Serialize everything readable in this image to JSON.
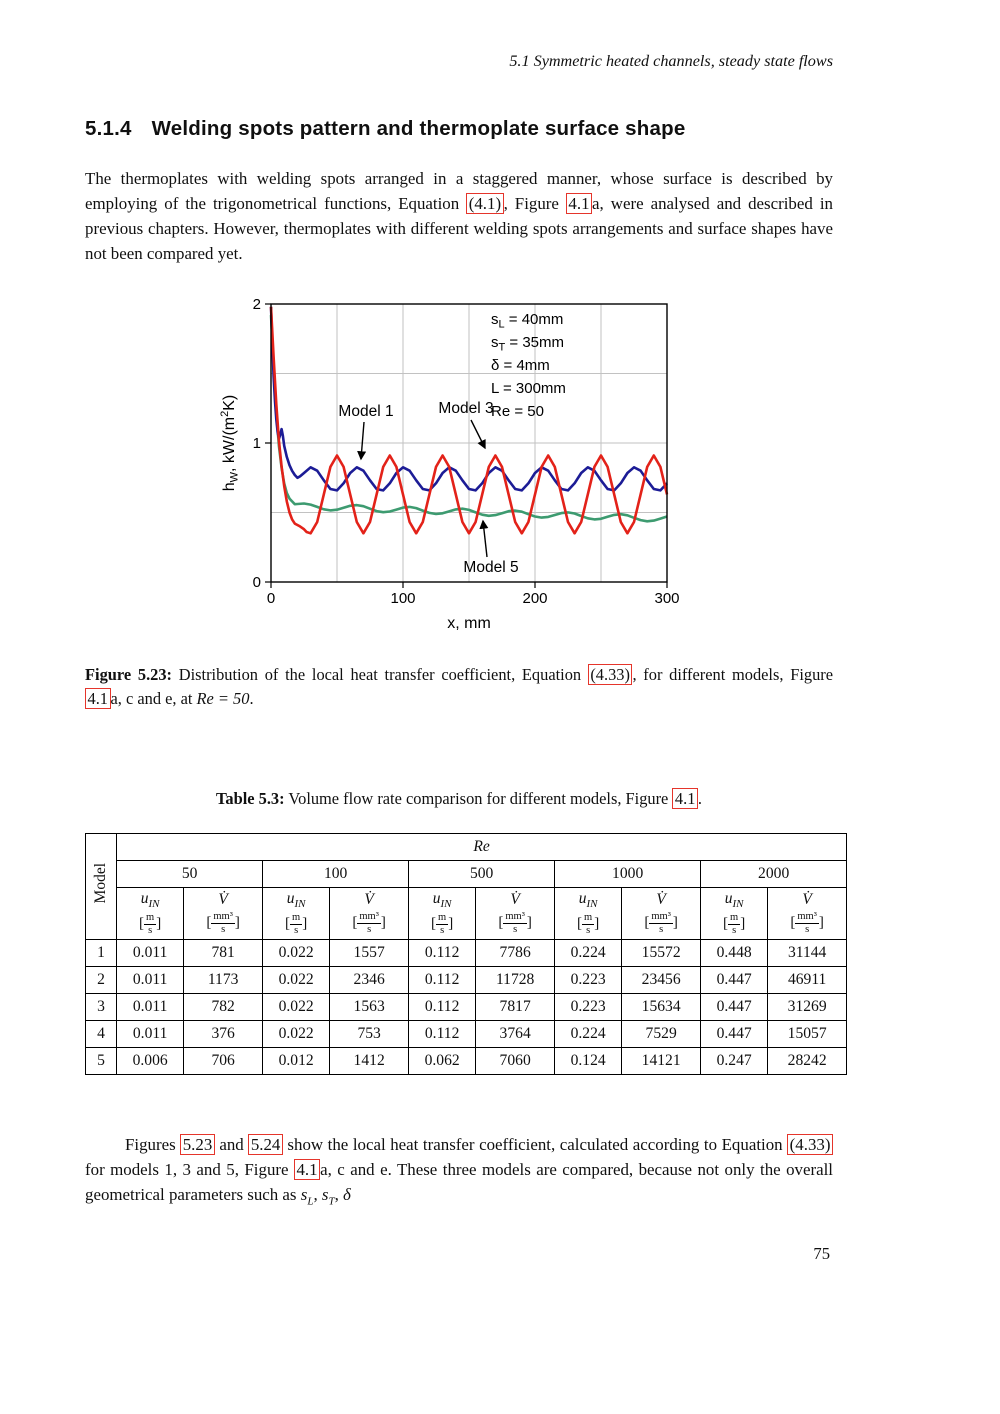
{
  "running_head": "5.1 Symmetric heated channels, steady state flows",
  "heading": {
    "number": "5.1.4",
    "title": "Welding spots pattern and thermoplate surface shape"
  },
  "para1": {
    "s0": "The thermoplates with welding spots arranged in a staggered manner, whose surface is described by employing of the trigonometrical functions, Equation ",
    "ref1": "(4.1)",
    "s1": ", Figure ",
    "ref2": "4.1",
    "s2": "a, were analysed and described in previous chapters. However, thermoplates with different welding spots arrangements and surface shapes have not been compared yet."
  },
  "figure": {
    "ylabel_parts": {
      "p0": "h",
      "sub": "W",
      "p1": ", kW/(m",
      "sup": "2",
      "p2": "K)"
    },
    "xlabel": "x, mm",
    "params": [
      {
        "text": "sL = 40mm",
        "pre": "s",
        "sub": "L",
        "post": " = 40mm"
      },
      {
        "text": "sT = 35mm",
        "pre": "s",
        "sub": "T",
        "post": " = 35mm"
      },
      {
        "text": "δ = 4mm"
      },
      {
        "text": "L = 300mm"
      },
      {
        "text": "Re = 50"
      }
    ],
    "annotations": [
      {
        "label": "Model 1"
      },
      {
        "label": "Model 3"
      },
      {
        "label": "Model 5"
      }
    ]
  },
  "chart_data": {
    "type": "line",
    "xlabel": "x, mm",
    "ylabel": "h_W, kW/(m²K)",
    "xlim": [
      0,
      300
    ],
    "ylim": [
      0,
      2
    ],
    "xticks": [
      0,
      100,
      200,
      300
    ],
    "yticks": [
      0,
      1,
      2
    ],
    "grid_x_step": 50,
    "grid_y_step": 0.5,
    "params_box": [
      "sL = 40mm",
      "sT = 35mm",
      "δ = 4mm",
      "L = 300mm",
      "Re = 50"
    ],
    "series": [
      {
        "name": "Model 1",
        "color": "#1c1c96",
        "z": 2,
        "points": [
          [
            0,
            1.98
          ],
          [
            1,
            1.72
          ],
          [
            2,
            1.48
          ],
          [
            3,
            1.3
          ],
          [
            4,
            1.17
          ],
          [
            5,
            1.08
          ],
          [
            6,
            1.03
          ],
          [
            7,
            1.06
          ],
          [
            8,
            1.1
          ],
          [
            9,
            1.05
          ],
          [
            10,
            0.98
          ],
          [
            12,
            0.9
          ],
          [
            14,
            0.84
          ],
          [
            16,
            0.8
          ],
          [
            18,
            0.77
          ],
          [
            20,
            0.75
          ],
          [
            22,
            0.76
          ],
          [
            25,
            0.784
          ],
          [
            30,
            0.825
          ],
          [
            35,
            0.801
          ],
          [
            40,
            0.732
          ],
          [
            45,
            0.669
          ],
          [
            50,
            0.659
          ],
          [
            55,
            0.71
          ],
          [
            60,
            0.784
          ],
          [
            65,
            0.825
          ],
          [
            70,
            0.801
          ],
          [
            75,
            0.732
          ],
          [
            80,
            0.669
          ],
          [
            85,
            0.659
          ],
          [
            90,
            0.71
          ],
          [
            95,
            0.784
          ],
          [
            100,
            0.825
          ],
          [
            105,
            0.801
          ],
          [
            110,
            0.732
          ],
          [
            115,
            0.669
          ],
          [
            120,
            0.659
          ],
          [
            125,
            0.71
          ],
          [
            130,
            0.784
          ],
          [
            135,
            0.825
          ],
          [
            140,
            0.801
          ],
          [
            145,
            0.732
          ],
          [
            150,
            0.669
          ],
          [
            155,
            0.659
          ],
          [
            160,
            0.71
          ],
          [
            165,
            0.784
          ],
          [
            170,
            0.825
          ],
          [
            175,
            0.801
          ],
          [
            180,
            0.732
          ],
          [
            185,
            0.669
          ],
          [
            190,
            0.659
          ],
          [
            195,
            0.71
          ],
          [
            200,
            0.784
          ],
          [
            205,
            0.825
          ],
          [
            210,
            0.801
          ],
          [
            215,
            0.732
          ],
          [
            220,
            0.669
          ],
          [
            225,
            0.659
          ],
          [
            230,
            0.71
          ],
          [
            235,
            0.784
          ],
          [
            240,
            0.825
          ],
          [
            245,
            0.801
          ],
          [
            250,
            0.732
          ],
          [
            255,
            0.669
          ],
          [
            260,
            0.659
          ],
          [
            265,
            0.71
          ],
          [
            270,
            0.784
          ],
          [
            275,
            0.825
          ],
          [
            280,
            0.801
          ],
          [
            285,
            0.732
          ],
          [
            290,
            0.669
          ],
          [
            295,
            0.659
          ],
          [
            300,
            0.71
          ]
        ]
      },
      {
        "name": "Model 3",
        "color": "#e32219",
        "z": 3,
        "points": [
          [
            0,
            1.98
          ],
          [
            2,
            1.62
          ],
          [
            4,
            1.28
          ],
          [
            6,
            1.02
          ],
          [
            8,
            0.83
          ],
          [
            10,
            0.69
          ],
          [
            12,
            0.58
          ],
          [
            14,
            0.5
          ],
          [
            16,
            0.45
          ],
          [
            18,
            0.42
          ],
          [
            20,
            0.41
          ],
          [
            22,
            0.4
          ],
          [
            25,
            0.38
          ],
          [
            27,
            0.36
          ],
          [
            30,
            0.35
          ],
          [
            35,
            0.432
          ],
          [
            40,
            0.63
          ],
          [
            45,
            0.828
          ],
          [
            50,
            0.91
          ],
          [
            55,
            0.828
          ],
          [
            60,
            0.63
          ],
          [
            65,
            0.432
          ],
          [
            70,
            0.35
          ],
          [
            75,
            0.432
          ],
          [
            80,
            0.63
          ],
          [
            85,
            0.828
          ],
          [
            90,
            0.91
          ],
          [
            95,
            0.828
          ],
          [
            100,
            0.63
          ],
          [
            105,
            0.432
          ],
          [
            110,
            0.35
          ],
          [
            115,
            0.432
          ],
          [
            120,
            0.63
          ],
          [
            125,
            0.828
          ],
          [
            130,
            0.91
          ],
          [
            135,
            0.828
          ],
          [
            140,
            0.63
          ],
          [
            145,
            0.432
          ],
          [
            150,
            0.35
          ],
          [
            155,
            0.432
          ],
          [
            160,
            0.63
          ],
          [
            165,
            0.828
          ],
          [
            170,
            0.91
          ],
          [
            175,
            0.828
          ],
          [
            180,
            0.63
          ],
          [
            185,
            0.432
          ],
          [
            190,
            0.35
          ],
          [
            195,
            0.432
          ],
          [
            200,
            0.63
          ],
          [
            205,
            0.828
          ],
          [
            210,
            0.91
          ],
          [
            215,
            0.828
          ],
          [
            220,
            0.63
          ],
          [
            225,
            0.432
          ],
          [
            230,
            0.35
          ],
          [
            235,
            0.432
          ],
          [
            240,
            0.63
          ],
          [
            245,
            0.828
          ],
          [
            250,
            0.91
          ],
          [
            255,
            0.828
          ],
          [
            260,
            0.63
          ],
          [
            265,
            0.432
          ],
          [
            270,
            0.35
          ],
          [
            275,
            0.432
          ],
          [
            280,
            0.63
          ],
          [
            285,
            0.828
          ],
          [
            290,
            0.91
          ],
          [
            295,
            0.828
          ],
          [
            300,
            0.63
          ]
        ]
      },
      {
        "name": "Model 5",
        "color": "#3d9b70",
        "z": 1,
        "points": [
          [
            0,
            1.92
          ],
          [
            2,
            1.55
          ],
          [
            4,
            1.22
          ],
          [
            6,
            0.98
          ],
          [
            8,
            0.82
          ],
          [
            10,
            0.71
          ],
          [
            12,
            0.64
          ],
          [
            14,
            0.6
          ],
          [
            16,
            0.58
          ],
          [
            18,
            0.56
          ],
          [
            20,
            0.561
          ],
          [
            25,
            0.565
          ],
          [
            30,
            0.557
          ],
          [
            35,
            0.54
          ],
          [
            40,
            0.523
          ],
          [
            45,
            0.515
          ],
          [
            50,
            0.52
          ],
          [
            55,
            0.534
          ],
          [
            60,
            0.548
          ],
          [
            65,
            0.553
          ],
          [
            70,
            0.545
          ],
          [
            75,
            0.527
          ],
          [
            80,
            0.51
          ],
          [
            85,
            0.502
          ],
          [
            90,
            0.507
          ],
          [
            95,
            0.521
          ],
          [
            100,
            0.535
          ],
          [
            105,
            0.54
          ],
          [
            110,
            0.532
          ],
          [
            115,
            0.514
          ],
          [
            120,
            0.497
          ],
          [
            125,
            0.489
          ],
          [
            130,
            0.494
          ],
          [
            135,
            0.508
          ],
          [
            140,
            0.522
          ],
          [
            145,
            0.527
          ],
          [
            150,
            0.519
          ],
          [
            155,
            0.501
          ],
          [
            160,
            0.484
          ],
          [
            165,
            0.476
          ],
          [
            170,
            0.481
          ],
          [
            175,
            0.495
          ],
          [
            180,
            0.509
          ],
          [
            185,
            0.514
          ],
          [
            190,
            0.506
          ],
          [
            195,
            0.488
          ],
          [
            200,
            0.471
          ],
          [
            205,
            0.463
          ],
          [
            210,
            0.468
          ],
          [
            215,
            0.482
          ],
          [
            220,
            0.496
          ],
          [
            225,
            0.501
          ],
          [
            230,
            0.493
          ],
          [
            235,
            0.475
          ],
          [
            240,
            0.458
          ],
          [
            245,
            0.45
          ],
          [
            250,
            0.455
          ],
          [
            255,
            0.469
          ],
          [
            260,
            0.483
          ],
          [
            265,
            0.488
          ],
          [
            270,
            0.48
          ],
          [
            275,
            0.462
          ],
          [
            280,
            0.445
          ],
          [
            285,
            0.437
          ],
          [
            290,
            0.442
          ],
          [
            295,
            0.456
          ],
          [
            300,
            0.471
          ]
        ]
      }
    ]
  },
  "figcap": {
    "label": "Figure 5.23:",
    "s0": " Distribution of the local heat transfer coefficient, Equation ",
    "ref1": "(4.33)",
    "s1": ", for different models, Figure ",
    "ref2": "4.1",
    "s2": "a, c and e, at ",
    "math": "Re = 50",
    "s3": "."
  },
  "tablecap": {
    "label": "Table 5.3:",
    "s0": " Volume flow rate comparison for different models, Figure ",
    "ref1": "4.1",
    "s1": "."
  },
  "table": {
    "model_label": "Model",
    "re_label": "Re",
    "re_values": [
      "50",
      "100",
      "500",
      "1000",
      "2000"
    ],
    "col_u_base": "u",
    "col_u_sub": "IN",
    "col_v": "V̇",
    "unit_u_num": "m",
    "unit_v_num": "mm³",
    "unit_den": "s",
    "rows": [
      {
        "model": "1",
        "values": [
          "0.011",
          "781",
          "0.022",
          "1557",
          "0.112",
          "7786",
          "0.224",
          "15572",
          "0.448",
          "31144"
        ]
      },
      {
        "model": "2",
        "values": [
          "0.011",
          "1173",
          "0.022",
          "2346",
          "0.112",
          "11728",
          "0.223",
          "23456",
          "0.447",
          "46911"
        ]
      },
      {
        "model": "3",
        "values": [
          "0.011",
          "782",
          "0.022",
          "1563",
          "0.112",
          "7817",
          "0.223",
          "15634",
          "0.447",
          "31269"
        ]
      },
      {
        "model": "4",
        "values": [
          "0.011",
          "376",
          "0.022",
          "753",
          "0.112",
          "3764",
          "0.224",
          "7529",
          "0.447",
          "15057"
        ]
      },
      {
        "model": "5",
        "values": [
          "0.006",
          "706",
          "0.012",
          "1412",
          "0.062",
          "7060",
          "0.124",
          "14121",
          "0.247",
          "28242"
        ]
      }
    ]
  },
  "para2": {
    "s0": "Figures ",
    "ref1": "5.23",
    "s1": " and ",
    "ref2": "5.24",
    "s2": " show the local heat transfer coefficient, calculated according to Equation ",
    "ref3": "(4.33)",
    "s3": " for models 1, 3 and 5, Figure ",
    "ref4": "4.1",
    "s4": "a, c and e. These three models are compared, because not only the overall geometrical parameters such as ",
    "m1": "s",
    "m1sub": "L",
    "s5": ", ",
    "m2": "s",
    "m2sub": "T",
    "s6": ", ",
    "m3": "δ"
  },
  "page_number": "75",
  "colors": {
    "ref_box": "#e5352b",
    "model1": "#1c1c96",
    "model3": "#e32219",
    "model5": "#3d9b70",
    "grid": "#c2c2c2"
  }
}
